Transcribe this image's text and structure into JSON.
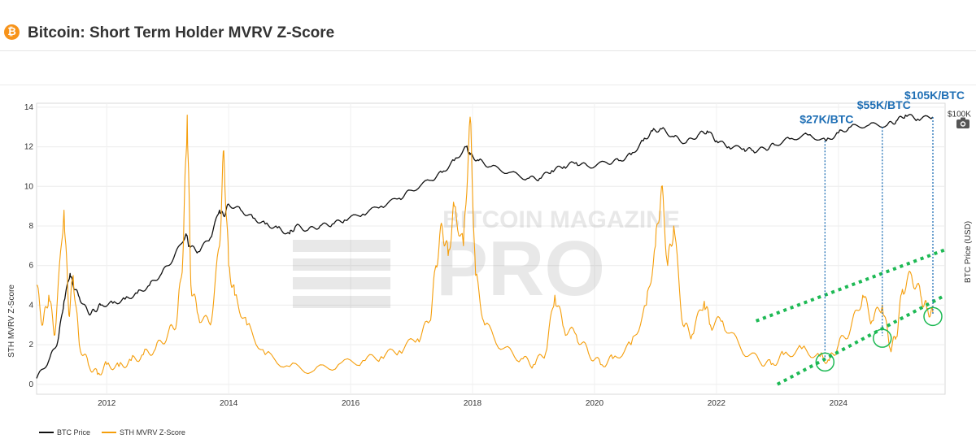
{
  "header": {
    "logo_glyph": "₿",
    "title": "Bitcoin: Short Term Holder MVRV Z-Score"
  },
  "toolbar": {
    "camera_icon": "camera-icon"
  },
  "watermark": {
    "line1": "BITCOIN MAGAZINE",
    "line2": "PRO"
  },
  "colors": {
    "price": "#111111",
    "zscore": "#f59e0b",
    "annotation": "#1f6fb5",
    "channel": "#1db954"
  },
  "chart_data": {
    "type": "line",
    "title": "Bitcoin: Short Term Holder MVRV Z-Score",
    "xlabel": "",
    "ylabel": "STH MVRV Z-Score",
    "y2label": "BTC Price (USD)",
    "x_ticks": [
      "2012",
      "2014",
      "2016",
      "2018",
      "2020",
      "2022",
      "2024"
    ],
    "y_ticks": [
      "0",
      "2",
      "4",
      "6",
      "8",
      "10",
      "12",
      "14"
    ],
    "y2_ticks": [
      "$100K"
    ],
    "xlim": [
      2010.85,
      2025.75
    ],
    "ylim": [
      -0.5,
      14.2
    ],
    "grid": true,
    "legend_position": "bottom-left",
    "series": [
      {
        "name": "BTC Price",
        "color": "#111111",
        "x": [
          2010.85,
          2011.05,
          2011.2,
          2011.3,
          2011.4,
          2011.45,
          2011.55,
          2011.7,
          2011.8,
          2011.9,
          2012.1,
          2012.3,
          2012.5,
          2012.7,
          2012.9,
          2013.1,
          2013.3,
          2013.35,
          2013.5,
          2013.7,
          2013.85,
          2013.92,
          2014.0,
          2014.2,
          2014.4,
          2014.6,
          2014.8,
          2015.0,
          2015.1,
          2015.3,
          2015.5,
          2015.7,
          2015.9,
          2016.2,
          2016.5,
          2016.8,
          2017.0,
          2017.3,
          2017.5,
          2017.7,
          2017.9,
          2017.96,
          2018.1,
          2018.3,
          2018.6,
          2018.9,
          2019.1,
          2019.3,
          2019.5,
          2019.7,
          2019.9,
          2020.2,
          2020.4,
          2020.6,
          2020.8,
          2020.95,
          2021.1,
          2021.3,
          2021.5,
          2021.7,
          2021.85,
          2022.0,
          2022.2,
          2022.45,
          2022.6,
          2022.8,
          2022.95,
          2023.2,
          2023.5,
          2023.8,
          2024.0,
          2024.2,
          2024.5,
          2024.8,
          2024.95,
          2025.1,
          2025.3,
          2025.55
        ],
        "y": [
          0.3,
          1.2,
          2.2,
          4.2,
          5.6,
          5.0,
          4.4,
          3.6,
          3.7,
          4.0,
          4.1,
          4.3,
          4.6,
          5.0,
          5.6,
          6.4,
          7.6,
          7.0,
          6.7,
          7.4,
          8.8,
          8.5,
          9.1,
          8.8,
          8.4,
          8.1,
          7.9,
          7.6,
          8.0,
          7.8,
          8.0,
          8.1,
          8.3,
          8.6,
          9.0,
          9.4,
          9.8,
          10.3,
          10.7,
          11.3,
          12.0,
          11.6,
          11.3,
          11.0,
          10.7,
          10.4,
          10.4,
          10.8,
          11.0,
          11.2,
          11.0,
          11.2,
          11.3,
          11.6,
          12.3,
          12.8,
          12.9,
          12.5,
          12.2,
          12.6,
          12.8,
          12.3,
          12.0,
          11.9,
          11.8,
          11.9,
          12.1,
          12.4,
          12.6,
          12.3,
          12.7,
          13.0,
          13.1,
          13.1,
          13.3,
          13.6,
          13.4,
          13.5
        ]
      },
      {
        "name": "STH MVRV Z-Score",
        "color": "#f59e0b",
        "x": [
          2010.85,
          2010.95,
          2011.05,
          2011.15,
          2011.3,
          2011.38,
          2011.45,
          2011.55,
          2011.7,
          2011.85,
          2012.0,
          2012.2,
          2012.4,
          2012.6,
          2012.8,
          2013.0,
          2013.15,
          2013.25,
          2013.32,
          2013.38,
          2013.5,
          2013.7,
          2013.85,
          2013.92,
          2014.0,
          2014.1,
          2014.3,
          2014.6,
          2015.0,
          2015.4,
          2015.8,
          2016.2,
          2016.5,
          2016.8,
          2017.1,
          2017.3,
          2017.4,
          2017.5,
          2017.6,
          2017.7,
          2017.85,
          2017.96,
          2018.05,
          2018.2,
          2018.5,
          2018.8,
          2019.0,
          2019.2,
          2019.35,
          2019.5,
          2019.7,
          2019.9,
          2020.1,
          2020.3,
          2020.6,
          2020.85,
          2021.0,
          2021.1,
          2021.2,
          2021.3,
          2021.45,
          2021.6,
          2021.8,
          2021.9,
          2022.1,
          2022.4,
          2022.7,
          2022.9,
          2023.1,
          2023.4,
          2023.7,
          2023.85,
          2024.0,
          2024.2,
          2024.4,
          2024.55,
          2024.72,
          2024.85,
          2024.95,
          2025.05,
          2025.2,
          2025.35,
          2025.45,
          2025.55
        ],
        "y": [
          5.0,
          3.0,
          4.5,
          2.5,
          8.8,
          3.5,
          5.5,
          2.0,
          1.0,
          0.5,
          1.0,
          0.9,
          1.2,
          1.5,
          1.8,
          2.5,
          3.2,
          6.5,
          13.6,
          5.0,
          3.5,
          3.0,
          7.0,
          11.8,
          6.0,
          4.5,
          3.0,
          1.5,
          0.9,
          0.7,
          1.0,
          1.2,
          1.4,
          1.7,
          2.3,
          3.2,
          6.0,
          8.0,
          6.5,
          9.0,
          7.0,
          13.5,
          5.5,
          3.0,
          1.8,
          1.3,
          1.0,
          1.6,
          4.5,
          2.8,
          2.5,
          1.6,
          1.0,
          1.3,
          2.0,
          4.0,
          7.0,
          10.0,
          6.0,
          8.0,
          3.0,
          2.5,
          4.2,
          3.0,
          3.2,
          1.8,
          1.2,
          1.0,
          1.5,
          1.8,
          1.4,
          1.2,
          2.0,
          2.8,
          4.5,
          3.2,
          4.0,
          1.8,
          2.4,
          4.8,
          5.5,
          4.5,
          3.8,
          3.6
        ]
      }
    ],
    "annotations": [
      {
        "label": "$27K/BTC",
        "x": 2023.78,
        "y_price": 12.3,
        "y_z": 1.25
      },
      {
        "label": "$55K/BTC",
        "x": 2024.72,
        "y_price": 13.0,
        "y_z": 2.45
      },
      {
        "label": "$105K/BTC",
        "x": 2025.55,
        "y_price": 13.5,
        "y_z": 3.55
      }
    ],
    "channel_lines": [
      {
        "x": [
          2022.65,
          2025.75
        ],
        "y": [
          3.2,
          6.8
        ]
      },
      {
        "x": [
          2023.0,
          2025.75
        ],
        "y": [
          0.0,
          4.5
        ]
      }
    ]
  },
  "legend": {
    "items": [
      {
        "label": "BTC Price",
        "color": "#111111"
      },
      {
        "label": "STH MVRV Z-Score",
        "color": "#f59e0b"
      }
    ]
  }
}
